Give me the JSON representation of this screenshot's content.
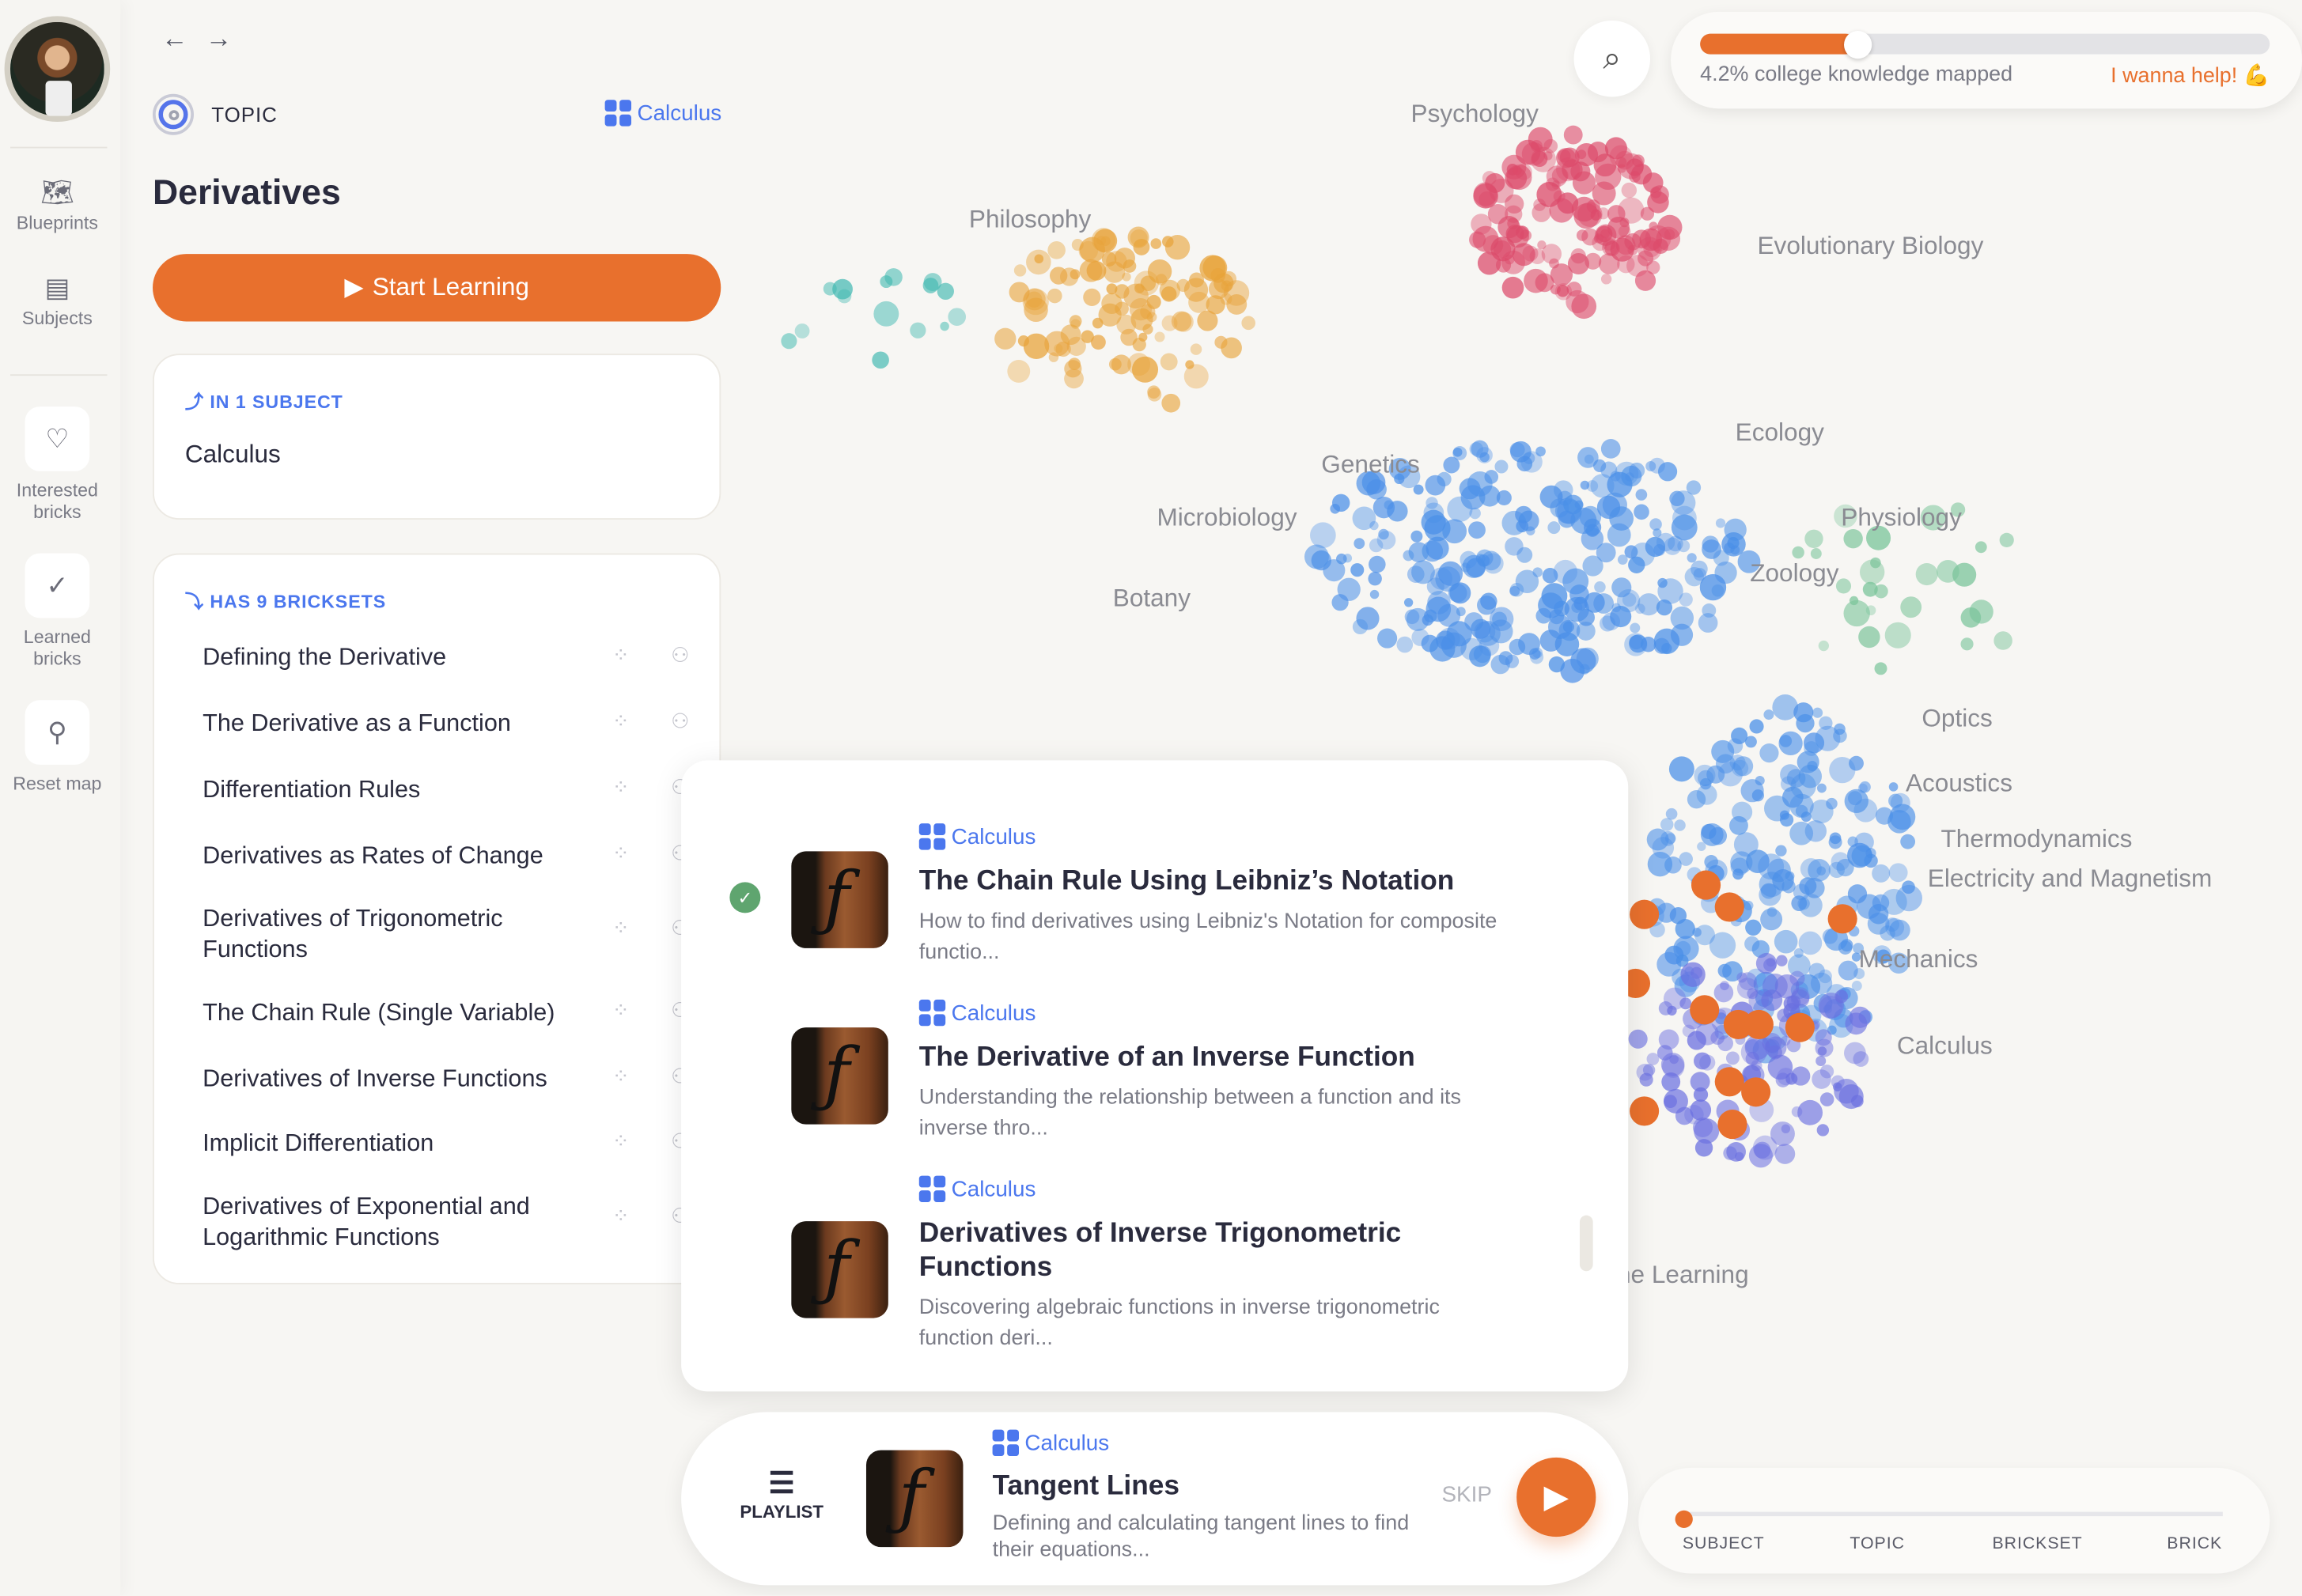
{
  "rail": {
    "items": [
      {
        "label": "Blueprints",
        "icon": "map-icon"
      },
      {
        "label": "Subjects",
        "icon": "book-icon"
      },
      {
        "label": "Interested bricks",
        "icon": "heart-icon"
      },
      {
        "label": "Learned bricks",
        "icon": "check-icon"
      },
      {
        "label": "Reset map",
        "icon": "pin-icon"
      }
    ]
  },
  "panel": {
    "type_label": "TOPIC",
    "subject_link": "Calculus",
    "title": "Derivatives",
    "start_label": "Start Learning",
    "in_subject": {
      "header": "IN 1 SUBJECT",
      "subject": "Calculus"
    },
    "bricksets": {
      "header": "HAS 9 BRICKSETS",
      "items": [
        "Defining the Derivative",
        "The Derivative as a Function",
        "Differentiation Rules",
        "Derivatives as Rates of Change",
        "Derivatives of Trigonometric Functions",
        "The Chain Rule (Single Variable)",
        "Derivatives of Inverse Functions",
        "Implicit Differentiation",
        "Derivatives of Exponential and Logarithmic Functions"
      ]
    }
  },
  "map": {
    "labels": [
      "Psychology",
      "Philosophy",
      "Evolutionary Biology",
      "Ecology",
      "Genetics",
      "Microbiology",
      "Physiology",
      "Zoology",
      "Botany",
      "Optics",
      "Acoustics",
      "Thermodynamics",
      "Electricity and Magnetism",
      "Mechanics",
      "Calculus",
      "Machine Learning"
    ]
  },
  "progress": {
    "percent": 4.2,
    "text": "4.2% college knowledge mapped",
    "help": "I wanna help! 💪"
  },
  "popup": {
    "items": [
      {
        "category": "Calculus",
        "title": "The Chain Rule Using Leibniz’s Notation",
        "desc": "How to find derivatives using Leibniz's Notation for composite functio...",
        "completed": true
      },
      {
        "category": "Calculus",
        "title": "The Derivative of an Inverse Function",
        "desc": "Understanding the relationship between a function and its inverse thro...",
        "completed": false
      },
      {
        "category": "Calculus",
        "title": "Derivatives of Inverse Trigonometric Functions",
        "desc": "Discovering algebraic functions in inverse trigonometric function deri...",
        "completed": false
      }
    ]
  },
  "player": {
    "playlist_label": "PLAYLIST",
    "category": "Calculus",
    "title": "Tangent Lines",
    "desc": "Defining and calculating tangent lines to find their equations...",
    "skip": "SKIP"
  },
  "levels": {
    "items": [
      "SUBJECT",
      "TOPIC",
      "BRICKSET",
      "BRICK"
    ],
    "current": "SUBJECT"
  },
  "colors": {
    "accent": "#e8702d",
    "link": "#4b77ee",
    "text": "#2a2b3d",
    "success": "#5fa56f"
  }
}
